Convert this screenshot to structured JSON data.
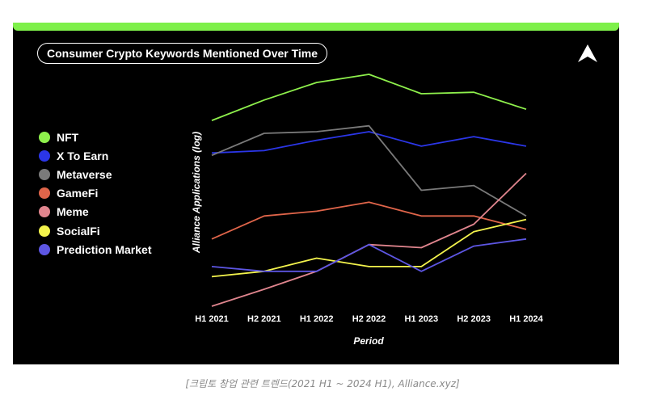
{
  "header": {
    "title": "Consumer Crypto Keywords Mentioned Over Time"
  },
  "logo": {
    "icon": "alliance-logo-icon"
  },
  "caption": "[크립토 창업 관련 트렌드(2021 H1 ~ 2024 H1), Alliance.xyz]",
  "colors": {
    "background": "#000000",
    "top_bar": "#7ef04a",
    "text": "#ffffff"
  },
  "chart_data": {
    "type": "line",
    "title": "Consumer Crypto Keywords Mentioned Over Time",
    "xlabel": "Period",
    "ylabel": "Alliance Applications (log)",
    "categories": [
      "H1 2021",
      "H2 2021",
      "H1 2022",
      "H2 2022",
      "H1 2023",
      "H2 2023",
      "H1 2024"
    ],
    "y_scale": "log",
    "y_ticks_shown": false,
    "grid": false,
    "legend_position": "left",
    "ylim": [
      1,
      100
    ],
    "series": [
      {
        "name": "NFT",
        "color": "#8ef04c",
        "values": [
          40,
          60,
          85,
          100,
          68,
          70,
          50
        ]
      },
      {
        "name": "X To Earn",
        "color": "#2b36e8",
        "values": [
          21,
          22,
          27,
          32,
          24,
          29,
          24
        ]
      },
      {
        "name": "Metaverse",
        "color": "#7a7a7a",
        "values": [
          20,
          31,
          32,
          36,
          10,
          11,
          6
        ]
      },
      {
        "name": "GameFi",
        "color": "#e0654a",
        "values": [
          3.8,
          6.0,
          6.6,
          7.9,
          6.0,
          6.0,
          4.6
        ]
      },
      {
        "name": "Meme",
        "color": "#e0858e",
        "values": [
          1.0,
          1.4,
          2.0,
          3.4,
          3.2,
          5.1,
          14
        ]
      },
      {
        "name": "SocialFi",
        "color": "#f3f34c",
        "values": [
          1.8,
          2.0,
          2.6,
          2.2,
          2.2,
          4.4,
          5.6
        ]
      },
      {
        "name": "Prediction Market",
        "color": "#5d56e3",
        "values": [
          2.2,
          2.0,
          2.0,
          3.4,
          2.0,
          3.3,
          3.8
        ]
      }
    ]
  }
}
